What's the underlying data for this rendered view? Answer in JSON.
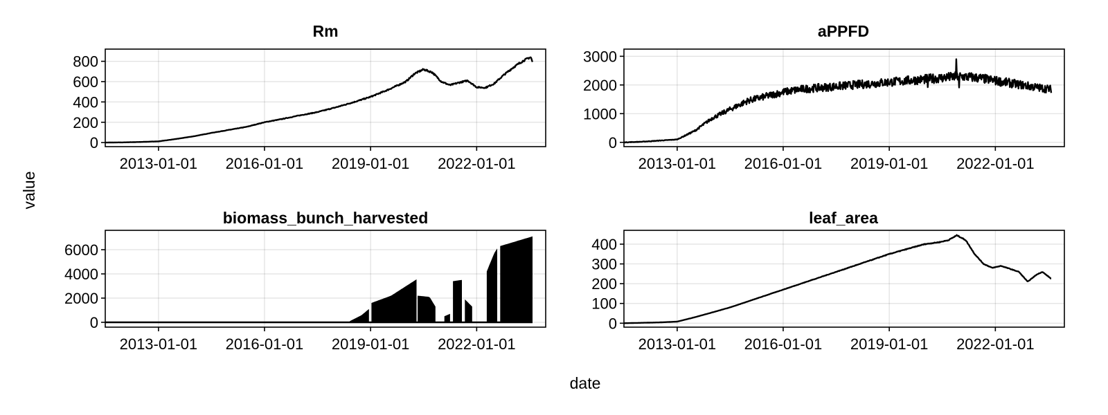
{
  "figure": {
    "ylabel": "value",
    "xlabel": "date"
  },
  "chart_data": [
    {
      "type": "line",
      "title": "Rm",
      "xlabel": "",
      "ylabel": "",
      "x_ticks": [
        "2013-01-01",
        "2016-01-01",
        "2019-01-01",
        "2022-01-01"
      ],
      "y_ticks": [
        0,
        200,
        400,
        600,
        800
      ],
      "xlim": [
        "2011-07-01",
        "2023-12-15"
      ],
      "ylim": [
        -40,
        920
      ],
      "grid": true,
      "noise": 10,
      "series": [
        {
          "x": [
            "2011-07-01",
            "2012-01-01",
            "2012-07-01",
            "2013-01-01",
            "2013-07-01",
            "2014-01-01",
            "2014-07-01",
            "2015-01-01",
            "2015-07-01",
            "2016-01-01",
            "2016-07-01",
            "2017-01-01",
            "2017-07-01",
            "2018-01-01",
            "2018-07-01",
            "2019-01-01",
            "2019-07-01",
            "2020-01-01",
            "2020-04-01",
            "2020-07-01",
            "2020-10-01",
            "2021-01-01",
            "2021-04-01",
            "2021-07-01",
            "2021-10-01",
            "2022-01-01",
            "2022-04-01",
            "2022-07-01",
            "2022-10-01",
            "2023-01-01",
            "2023-04-01",
            "2023-06-15",
            "2023-07-15",
            "2023-08-01"
          ],
          "y": [
            0,
            2,
            6,
            12,
            35,
            62,
            95,
            125,
            155,
            200,
            232,
            268,
            300,
            345,
            395,
            450,
            520,
            600,
            680,
            720,
            690,
            600,
            565,
            590,
            610,
            545,
            540,
            580,
            660,
            730,
            790,
            830,
            840,
            790
          ]
        }
      ]
    },
    {
      "type": "line",
      "title": "aPPFD",
      "xlabel": "",
      "ylabel": "",
      "x_ticks": [
        "2013-01-01",
        "2016-01-01",
        "2019-01-01",
        "2022-01-01"
      ],
      "y_ticks": [
        0,
        1000,
        2000,
        3000
      ],
      "xlim": [
        "2011-07-01",
        "2023-12-15"
      ],
      "ylim": [
        -150,
        3250
      ],
      "grid": true,
      "noise": 170,
      "series": [
        {
          "x": [
            "2011-07-01",
            "2012-01-01",
            "2012-07-01",
            "2013-01-01",
            "2013-07-01",
            "2014-01-01",
            "2014-07-01",
            "2015-01-01",
            "2015-07-01",
            "2016-01-01",
            "2016-07-01",
            "2017-01-01",
            "2017-07-01",
            "2018-01-01",
            "2018-07-01",
            "2019-01-01",
            "2019-07-01",
            "2020-01-01",
            "2020-07-01",
            "2021-01-01",
            "2021-07-01",
            "2022-01-01",
            "2022-07-01",
            "2023-01-01",
            "2023-04-01",
            "2023-08-01"
          ],
          "y": [
            0,
            20,
            60,
            100,
            400,
            850,
            1150,
            1450,
            1600,
            1750,
            1850,
            1900,
            1950,
            2000,
            2050,
            2100,
            2150,
            2200,
            2250,
            2300,
            2250,
            2150,
            2050,
            1950,
            1900,
            1850
          ]
        }
      ]
    },
    {
      "type": "bar",
      "title": "biomass_bunch_harvested",
      "xlabel": "",
      "ylabel": "",
      "x_ticks": [
        "2013-01-01",
        "2016-01-01",
        "2019-01-01",
        "2022-01-01"
      ],
      "y_ticks": [
        0,
        2000,
        4000,
        6000
      ],
      "xlim": [
        "2011-07-01",
        "2023-12-15"
      ],
      "ylim": [
        -400,
        7600
      ],
      "grid": true,
      "baseline": {
        "x": [
          "2011-07-01",
          "2023-08-01"
        ],
        "y": 0
      },
      "segments": [
        {
          "x": [
            "2018-06-01",
            "2018-10-01",
            "2018-12-15"
          ],
          "y": [
            100,
            600,
            1100
          ]
        },
        {
          "x": [
            "2019-01-10",
            "2019-08-01",
            "2020-04-20"
          ],
          "y": [
            1600,
            2200,
            3550
          ]
        },
        {
          "x": [
            "2020-05-01",
            "2020-09-01",
            "2020-11-01"
          ],
          "y": [
            2200,
            2100,
            1300
          ]
        },
        {
          "x": [
            "2021-02-01",
            "2021-04-01"
          ],
          "y": [
            500,
            700
          ]
        },
        {
          "x": [
            "2021-05-01",
            "2021-08-01"
          ],
          "y": [
            3400,
            3500
          ]
        },
        {
          "x": [
            "2021-09-01",
            "2021-11-15"
          ],
          "y": [
            1900,
            1300
          ]
        },
        {
          "x": [
            "2022-04-15",
            "2022-07-01",
            "2022-08-01"
          ],
          "y": [
            4200,
            5700,
            6100
          ]
        },
        {
          "x": [
            "2022-09-01",
            "2023-08-01"
          ],
          "y": [
            6300,
            7100
          ]
        }
      ]
    },
    {
      "type": "line",
      "title": "leaf_area",
      "xlabel": "",
      "ylabel": "",
      "x_ticks": [
        "2013-01-01",
        "2016-01-01",
        "2019-01-01",
        "2022-01-01"
      ],
      "y_ticks": [
        0,
        100,
        200,
        300,
        400
      ],
      "xlim": [
        "2011-07-01",
        "2023-12-15"
      ],
      "ylim": [
        -20,
        470
      ],
      "grid": true,
      "noise": 2,
      "series": [
        {
          "x": [
            "2011-07-01",
            "2012-01-01",
            "2012-07-01",
            "2013-01-01",
            "2013-07-01",
            "2014-01-01",
            "2014-07-01",
            "2015-01-01",
            "2016-01-01",
            "2017-01-01",
            "2018-01-01",
            "2019-01-01",
            "2019-07-01",
            "2020-01-01",
            "2020-06-01",
            "2020-09-01",
            "2020-12-01",
            "2021-03-01",
            "2021-06-01",
            "2021-09-01",
            "2021-12-01",
            "2022-03-01",
            "2022-06-01",
            "2022-09-01",
            "2022-12-01",
            "2023-03-01",
            "2023-05-01",
            "2023-08-01"
          ],
          "y": [
            0,
            2,
            4,
            8,
            30,
            55,
            80,
            110,
            170,
            230,
            290,
            350,
            375,
            400,
            410,
            420,
            445,
            420,
            350,
            300,
            280,
            290,
            275,
            260,
            210,
            245,
            260,
            225
          ]
        }
      ]
    }
  ]
}
